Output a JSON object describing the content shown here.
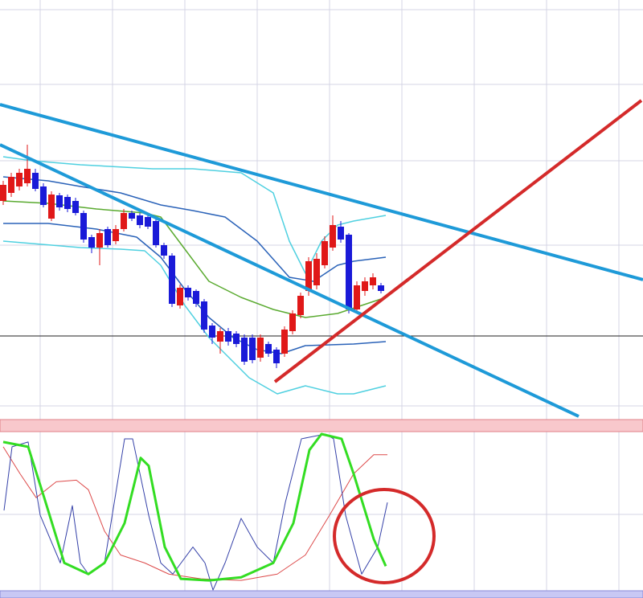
{
  "chart_data": {
    "type": "candlestick",
    "categories": [
      null,
      null,
      null,
      null,
      null,
      null,
      null,
      null,
      null,
      null,
      null,
      null,
      null,
      null,
      null,
      null,
      null,
      null,
      null,
      null,
      null,
      null,
      null,
      null,
      null,
      null,
      null,
      null,
      null,
      null,
      null,
      null,
      null,
      null,
      null,
      null,
      null,
      null,
      null,
      null,
      null,
      null,
      null,
      null,
      null,
      null,
      null,
      null
    ],
    "open": [
      270,
      280,
      288,
      292,
      305,
      288,
      248,
      277,
      275,
      270,
      255,
      225,
      212,
      235,
      220,
      235,
      255,
      252,
      250,
      245,
      215,
      202,
      140,
      162,
      158,
      145,
      115,
      95,
      108,
      105,
      100,
      100,
      75,
      92,
      85,
      80,
      108,
      128,
      158,
      165,
      190,
      212,
      238,
      228,
      135,
      158,
      165,
      165
    ],
    "high": [
      295,
      305,
      310,
      340,
      310,
      292,
      282,
      280,
      278,
      274,
      258,
      228,
      235,
      238,
      240,
      260,
      258,
      255,
      252,
      248,
      218,
      205,
      166,
      165,
      160,
      148,
      118,
      112,
      112,
      108,
      104,
      104,
      104,
      95,
      88,
      114,
      134,
      156,
      200,
      205,
      226,
      252,
      245,
      230,
      170,
      175,
      180,
      168
    ],
    "low": [
      265,
      275,
      283,
      288,
      282,
      262,
      245,
      258,
      256,
      252,
      218,
      205,
      190,
      212,
      216,
      232,
      245,
      236,
      235,
      212,
      198,
      138,
      136,
      146,
      138,
      106,
      92,
      80,
      90,
      88,
      66,
      68,
      70,
      76,
      62,
      76,
      104,
      124,
      152,
      160,
      186,
      208,
      218,
      130,
      130,
      152,
      160,
      155
    ],
    "close": [
      290,
      300,
      305,
      310,
      285,
      265,
      278,
      262,
      260,
      255,
      222,
      212,
      230,
      215,
      235,
      255,
      248,
      240,
      238,
      215,
      202,
      142,
      162,
      150,
      142,
      110,
      100,
      108,
      95,
      92,
      70,
      72,
      100,
      80,
      68,
      110,
      130,
      152,
      195,
      198,
      220,
      240,
      222,
      135,
      165,
      170,
      175,
      158
    ],
    "up_color": "#e01818",
    "down_color": "#1a1ad8",
    "ylim": [
      0,
      520
    ],
    "hline": 102,
    "overlays": [
      {
        "color": "#4fd0e0",
        "x": [
          0,
          3.6,
          9.6,
          18.6,
          23.6,
          29.6,
          33.6,
          35.6,
          37.6,
          39.6,
          41.6,
          43.6,
          47.6
        ],
        "values": [
          325,
          320,
          315,
          310,
          310,
          305,
          280,
          220,
          180,
          220,
          240,
          245,
          252
        ]
      },
      {
        "color": "#4fd0e0",
        "x": [
          0,
          9.6,
          14.6,
          17.6,
          19.6,
          22.6,
          25.6,
          27.6,
          30.6,
          34.1,
          37.6,
          41.6,
          43.6,
          47.6
        ],
        "values": [
          220,
          212,
          210,
          208,
          190,
          140,
          100,
          80,
          50,
          30,
          40,
          30,
          30,
          40
        ]
      },
      {
        "color": "#2a62b8",
        "x": [
          0,
          5.6,
          9.6,
          14.6,
          19.6,
          23.6,
          27.6,
          31.6,
          35.6,
          38.6,
          41.6,
          43.6,
          47.6
        ],
        "values": [
          300,
          295,
          288,
          280,
          265,
          258,
          250,
          220,
          175,
          170,
          190,
          195,
          200
        ]
      },
      {
        "color": "#2a62b8",
        "x": [
          0,
          5.6,
          11.6,
          16.6,
          19.6,
          22.6,
          25.6,
          28.6,
          31.6,
          34.6,
          37.6,
          43.6,
          47.6
        ],
        "values": [
          242,
          242,
          235,
          225,
          200,
          160,
          125,
          100,
          85,
          80,
          90,
          92,
          95
        ]
      },
      {
        "color": "#5aaa30",
        "x": [
          0,
          5.6,
          11.6,
          17.6,
          19.6,
          22.6,
          25.6,
          29.6,
          33.6,
          37.6,
          41.6,
          44.6,
          47.6
        ],
        "values": [
          270,
          267,
          260,
          255,
          250,
          210,
          170,
          150,
          135,
          125,
          130,
          140,
          150
        ]
      }
    ],
    "stoch_ylim": [
      0,
      100
    ],
    "stoch": [
      {
        "color": "#dd4a4a",
        "width": 1,
        "x": [
          0,
          2.1,
          4.1,
          6.6,
          9.1,
          10.6,
          12.6,
          14.6,
          17.6,
          20.6,
          24.6,
          29.6,
          34.1,
          37.6,
          40.6,
          43.6,
          46.1,
          47.8
        ],
        "values": [
          92,
          75,
          60,
          70,
          71,
          65,
          39,
          24,
          19,
          12,
          9,
          8,
          12,
          24,
          49,
          75,
          87,
          87
        ]
      },
      {
        "color": "#3440a8",
        "width": 1,
        "x": [
          0.1,
          1.1,
          3.1,
          4.6,
          7.1,
          8.6,
          9.6,
          10.6,
          12.6,
          15.1,
          16.1,
          18.1,
          19.6,
          21.1,
          23.6,
          25.1,
          26.1,
          27.6,
          29.6,
          31.6,
          33.6,
          35.1,
          37.1,
          40.1,
          41.1,
          42.6,
          44.6,
          46.6,
          47.8
        ],
        "values": [
          52,
          92,
          95,
          49,
          19,
          55,
          19,
          12,
          19,
          97,
          97,
          49,
          19,
          12,
          29,
          19,
          2,
          19,
          47,
          29,
          19,
          57,
          97,
          100,
          97,
          49,
          12,
          29,
          57
        ]
      },
      {
        "color": "#33dd22",
        "width": 3,
        "x": [
          0,
          3.1,
          5.1,
          7.6,
          10.6,
          12.6,
          15.1,
          17.1,
          18.1,
          20.1,
          22.1,
          25.6,
          29.6,
          33.6,
          36.1,
          38.1,
          39.6,
          42.1,
          43.6,
          46.1,
          47.6
        ],
        "values": [
          95,
          92,
          60,
          19,
          12,
          19,
          44,
          85,
          80,
          29,
          9,
          8,
          10,
          19,
          44,
          90,
          100,
          97,
          75,
          34,
          17
        ]
      }
    ]
  }
}
